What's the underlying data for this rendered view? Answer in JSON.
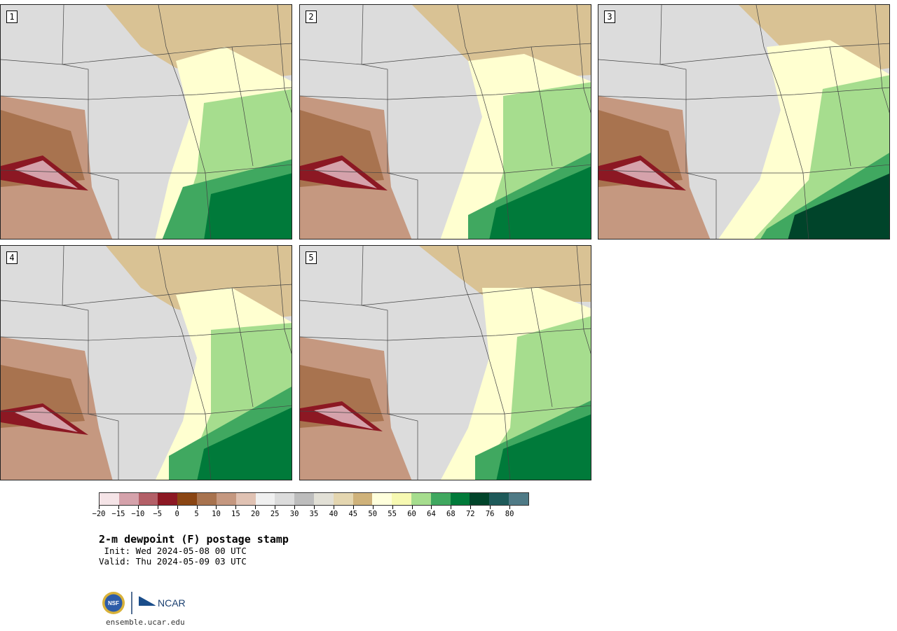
{
  "panels": [
    {
      "label": "1"
    },
    {
      "label": "2"
    },
    {
      "label": "3"
    },
    {
      "label": "4"
    },
    {
      "label": "5"
    }
  ],
  "legend": {
    "colors": [
      "#f5e4e7",
      "#d5a2ab",
      "#b35f67",
      "#8c1823",
      "#8a4513",
      "#a8734f",
      "#c59880",
      "#e0c2b3",
      "#f0f0f0",
      "#dcdcdc",
      "#bdbdbd",
      "#e2e0d6",
      "#e4d6b0",
      "#cfb27a",
      "#ffffdc",
      "#f7f9b2",
      "#a6dd8e",
      "#40a860",
      "#007a3a",
      "#00442a",
      "#1e5a5a",
      "#4f7a86"
    ],
    "ticks": [
      "-20",
      "-15",
      "-10",
      "-5",
      "0",
      "5",
      "10",
      "15",
      "20",
      "25",
      "30",
      "35",
      "40",
      "45",
      "50",
      "55",
      "60",
      "64",
      "68",
      "72",
      "76",
      "80"
    ]
  },
  "title": "2-m dewpoint (F) postage stamp",
  "init": " Init: Wed 2024-05-08 00 UTC",
  "valid": "Valid: Thu 2024-05-09 03 UTC",
  "logo": {
    "nsf": "NSF",
    "ncar": "NCAR"
  },
  "url": "ensemble.ucar.edu"
}
